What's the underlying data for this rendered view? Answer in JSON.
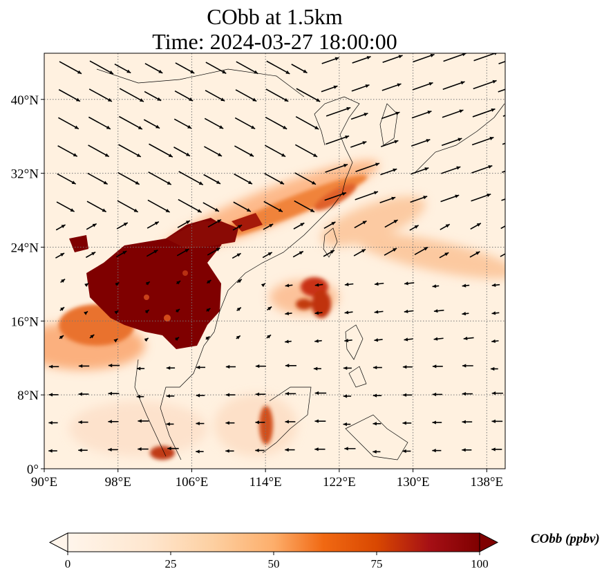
{
  "title": {
    "line1": "CObb at 1.5km",
    "line2": "Time: 2024-03-27 18:00:00"
  },
  "map": {
    "variable": "CObb",
    "units": "ppbv",
    "level": "1.5km",
    "lon_range": [
      90,
      140
    ],
    "lat_range": [
      0,
      45
    ],
    "lon_ticks": [
      "90°E",
      "98°E",
      "106°E",
      "114°E",
      "122°E",
      "130°E",
      "138°E"
    ],
    "lat_ticks": [
      "0°",
      "8°N",
      "16°N",
      "24°N",
      "32°N",
      "40°N"
    ],
    "gridlines": "dotted",
    "vectors": "wind",
    "plume_core_region": "Indochina / southern China"
  },
  "colorbar": {
    "label": "CObb (ppbv)",
    "ticks": [
      "0",
      "25",
      "50",
      "75",
      "100"
    ],
    "range": [
      0,
      100
    ],
    "extend": "both",
    "colormap": [
      "#fff5eb",
      "#fdd0a2",
      "#fd8d3c",
      "#d94801",
      "#a50f15",
      "#7f0000"
    ]
  }
}
